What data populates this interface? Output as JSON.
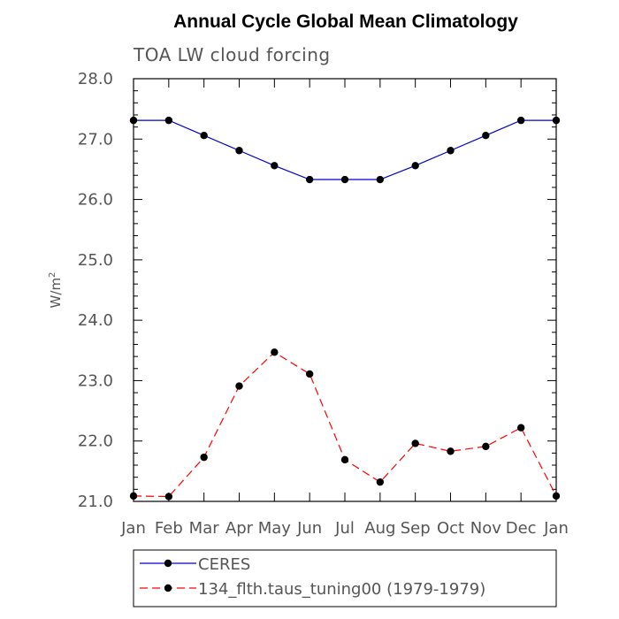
{
  "chart_data": {
    "type": "line",
    "title": "Annual Cycle Global Mean Climatology",
    "subtitle": "TOA LW cloud forcing",
    "ylabel": "W/m",
    "ylabel_superscript": "2",
    "xlabel": "",
    "ylim": [
      21.0,
      28.0
    ],
    "y_ticks": [
      "21.0",
      "22.0",
      "23.0",
      "24.0",
      "25.0",
      "26.0",
      "27.0",
      "28.0"
    ],
    "categories": [
      "Jan",
      "Feb",
      "Mar",
      "Apr",
      "May",
      "Jun",
      "Jul",
      "Aug",
      "Sep",
      "Oct",
      "Nov",
      "Dec",
      "Jan"
    ],
    "series": [
      {
        "name": "CERES",
        "color": "#0000cc",
        "line_style": "solid",
        "values": [
          27.31,
          27.31,
          27.06,
          26.81,
          26.56,
          26.33,
          26.33,
          26.33,
          26.56,
          26.81,
          27.06,
          27.31,
          27.31
        ]
      },
      {
        "name": "134_flth.taus_tuning00 (1979-1979)",
        "color": "#ff0000",
        "line_style": "dashed",
        "values": [
          21.09,
          21.08,
          21.73,
          22.91,
          23.47,
          23.11,
          21.69,
          21.32,
          21.96,
          21.83,
          21.91,
          22.22,
          21.09
        ]
      }
    ],
    "legend_position": "bottom",
    "grid": false
  }
}
